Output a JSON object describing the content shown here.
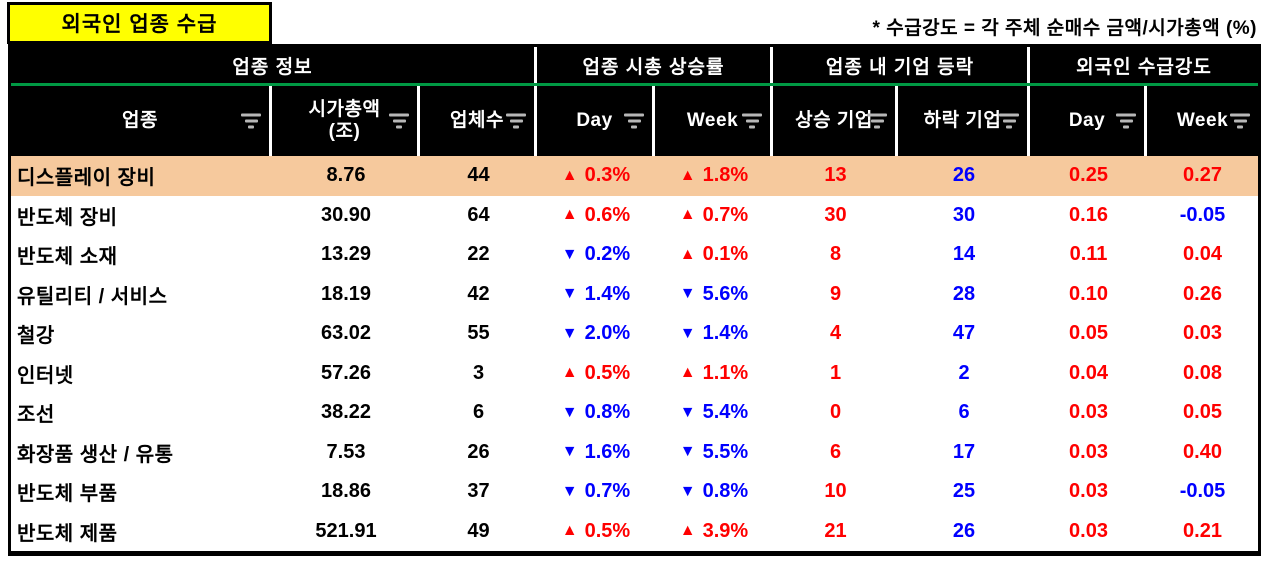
{
  "title": "외국인 업종 수급",
  "note": "* 수급강도 = 각 주체 순매수 금액/시가총액 (%)",
  "colors": {
    "up_red": "#ff0000",
    "down_blue": "#0000ff",
    "row_highlight": "#f6c99d",
    "header_bg": "#000000",
    "header_text": "#ffffff",
    "title_bg": "#ffff00",
    "group_divider_green": "#009944",
    "filter_icon_gray": "#b7b7b7"
  },
  "icons": {
    "header_filter": "filter-icon",
    "up_arrow": "▲",
    "down_arrow": "▼"
  },
  "table": {
    "groups": [
      {
        "label": "업종 정보",
        "span": 3
      },
      {
        "label": "업종 시총 상승률",
        "span": 2
      },
      {
        "label": "업종 내 기업 등락",
        "span": 2
      },
      {
        "label": "외국인 수급강도",
        "span": 2
      }
    ],
    "columns": [
      {
        "label": "업종"
      },
      {
        "label": "시가총액",
        "sub": "(조)"
      },
      {
        "label": "업체수"
      },
      {
        "label": "Day"
      },
      {
        "label": "Week"
      },
      {
        "label": "상승 기업"
      },
      {
        "label": "하락 기업"
      },
      {
        "label": "Day"
      },
      {
        "label": "Week"
      }
    ],
    "rows": [
      {
        "sector": "디스플레이 장비",
        "mktcap": "8.76",
        "count": "44",
        "day": {
          "dir": "up",
          "pct": "0.3%"
        },
        "week": {
          "dir": "up",
          "pct": "1.8%"
        },
        "up_firms": "13",
        "down_firms": "26",
        "strength_day": "0.25",
        "strength_week": "0.27",
        "highlighted": true
      },
      {
        "sector": "반도체 장비",
        "mktcap": "30.90",
        "count": "64",
        "day": {
          "dir": "up",
          "pct": "0.6%"
        },
        "week": {
          "dir": "up",
          "pct": "0.7%"
        },
        "up_firms": "30",
        "down_firms": "30",
        "strength_day": "0.16",
        "strength_week": "-0.05",
        "highlighted": false
      },
      {
        "sector": "반도체 소재",
        "mktcap": "13.29",
        "count": "22",
        "day": {
          "dir": "down",
          "pct": "0.2%"
        },
        "week": {
          "dir": "up",
          "pct": "0.1%"
        },
        "up_firms": "8",
        "down_firms": "14",
        "strength_day": "0.11",
        "strength_week": "0.04",
        "highlighted": false
      },
      {
        "sector": "유틸리티 / 서비스",
        "mktcap": "18.19",
        "count": "42",
        "day": {
          "dir": "down",
          "pct": "1.4%"
        },
        "week": {
          "dir": "down",
          "pct": "5.6%"
        },
        "up_firms": "9",
        "down_firms": "28",
        "strength_day": "0.10",
        "strength_week": "0.26",
        "highlighted": false
      },
      {
        "sector": "철강",
        "mktcap": "63.02",
        "count": "55",
        "day": {
          "dir": "down",
          "pct": "2.0%"
        },
        "week": {
          "dir": "down",
          "pct": "1.4%"
        },
        "up_firms": "4",
        "down_firms": "47",
        "strength_day": "0.05",
        "strength_week": "0.03",
        "highlighted": false
      },
      {
        "sector": "인터넷",
        "mktcap": "57.26",
        "count": "3",
        "day": {
          "dir": "up",
          "pct": "0.5%"
        },
        "week": {
          "dir": "up",
          "pct": "1.1%"
        },
        "up_firms": "1",
        "down_firms": "2",
        "strength_day": "0.04",
        "strength_week": "0.08",
        "highlighted": false
      },
      {
        "sector": "조선",
        "mktcap": "38.22",
        "count": "6",
        "day": {
          "dir": "down",
          "pct": "0.8%"
        },
        "week": {
          "dir": "down",
          "pct": "5.4%"
        },
        "up_firms": "0",
        "down_firms": "6",
        "strength_day": "0.03",
        "strength_week": "0.05",
        "highlighted": false
      },
      {
        "sector": "화장품 생산 / 유통",
        "mktcap": "7.53",
        "count": "26",
        "day": {
          "dir": "down",
          "pct": "1.6%"
        },
        "week": {
          "dir": "down",
          "pct": "5.5%"
        },
        "up_firms": "6",
        "down_firms": "17",
        "strength_day": "0.03",
        "strength_week": "0.40",
        "highlighted": false
      },
      {
        "sector": "반도체 부품",
        "mktcap": "18.86",
        "count": "37",
        "day": {
          "dir": "down",
          "pct": "0.7%"
        },
        "week": {
          "dir": "down",
          "pct": "0.8%"
        },
        "up_firms": "10",
        "down_firms": "25",
        "strength_day": "0.03",
        "strength_week": "-0.05",
        "highlighted": false
      },
      {
        "sector": "반도체 제품",
        "mktcap": "521.91",
        "count": "49",
        "day": {
          "dir": "up",
          "pct": "0.5%"
        },
        "week": {
          "dir": "up",
          "pct": "3.9%"
        },
        "up_firms": "21",
        "down_firms": "26",
        "strength_day": "0.03",
        "strength_week": "0.21",
        "highlighted": false
      }
    ]
  }
}
